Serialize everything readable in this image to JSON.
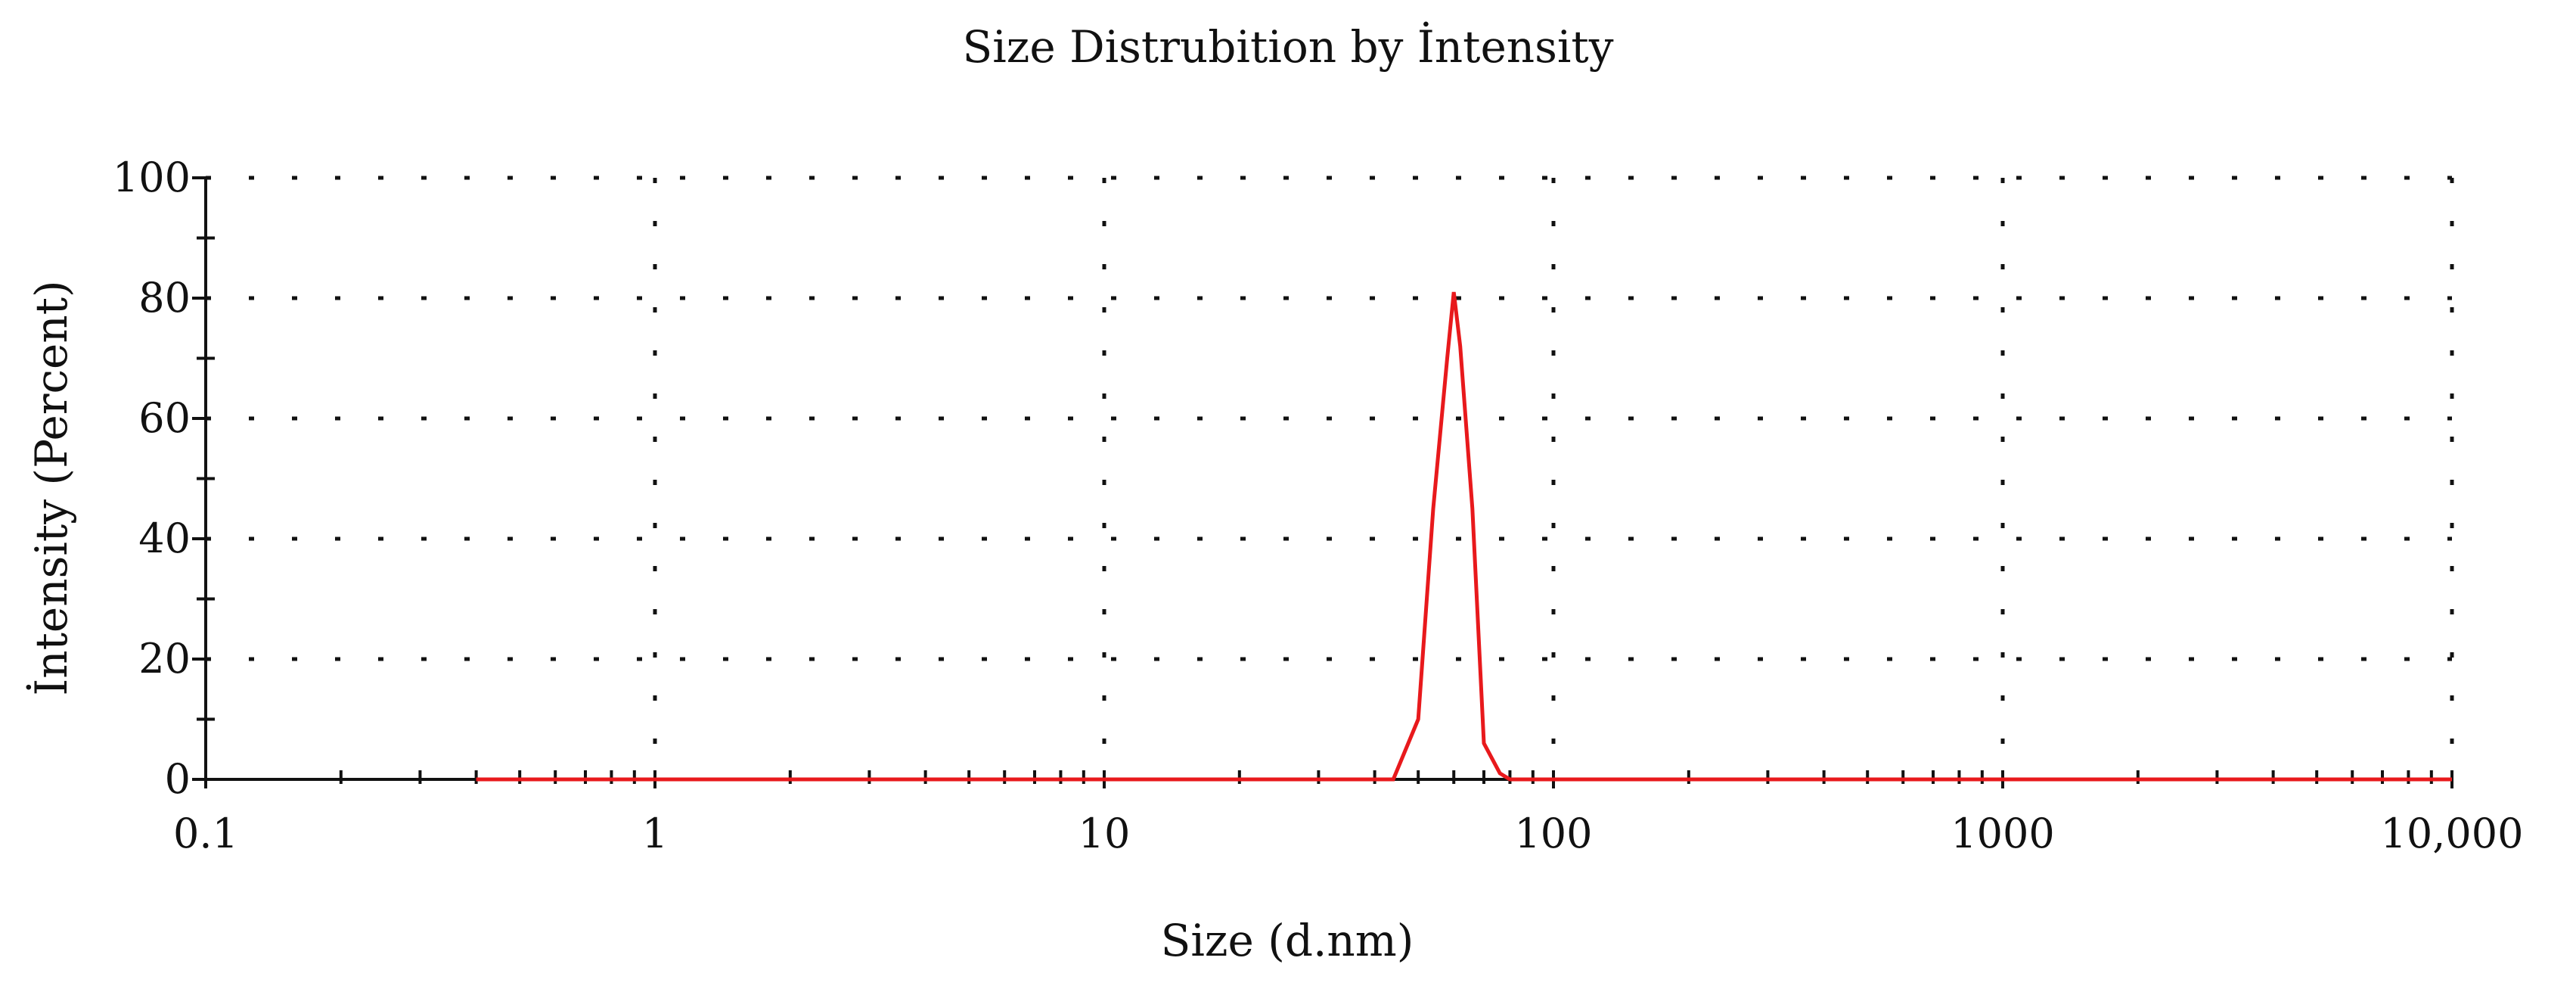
{
  "chart_data": {
    "type": "line",
    "title": "Size Distrubition by İntensity",
    "xlabel": "Size (d.nm)",
    "ylabel": "İntensity (Percent)",
    "xscale": "log",
    "xlim": [
      0.1,
      10000
    ],
    "ylim": [
      0,
      100
    ],
    "x_ticks": [
      {
        "value": 0.1,
        "label": "0.1"
      },
      {
        "value": 1,
        "label": "1"
      },
      {
        "value": 10,
        "label": "10"
      },
      {
        "value": 100,
        "label": "100"
      },
      {
        "value": 1000,
        "label": "1000"
      },
      {
        "value": 10000,
        "label": "10,000"
      }
    ],
    "y_ticks": [
      {
        "value": 0,
        "label": "0"
      },
      {
        "value": 20,
        "label": "20"
      },
      {
        "value": 40,
        "label": "40"
      },
      {
        "value": 60,
        "label": "60"
      },
      {
        "value": 80,
        "label": "80"
      },
      {
        "value": 100,
        "label": "100"
      }
    ],
    "grid": "dotted",
    "series": [
      {
        "color": "#e8191c",
        "x": [
          0.4,
          10,
          30,
          44,
          50,
          54,
          58,
          60,
          62,
          66,
          70,
          76,
          80,
          200,
          1000,
          10000
        ],
        "y": [
          0,
          0,
          0,
          0,
          10,
          45,
          70,
          81,
          72,
          45,
          6,
          1,
          0,
          0,
          0,
          0
        ]
      }
    ]
  }
}
